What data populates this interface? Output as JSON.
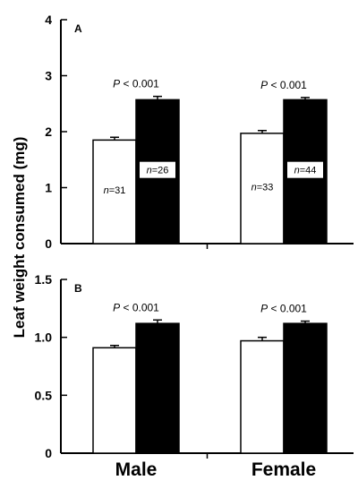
{
  "ylabel": "Leaf weight consumed (mg)",
  "categories": [
    "Male",
    "Female"
  ],
  "chart_data": [
    {
      "type": "bar",
      "panel": "A",
      "categories": [
        "Male",
        "Female"
      ],
      "series": [
        {
          "fill": "#ffffff",
          "values": [
            1.85,
            1.97
          ],
          "errors": [
            0.05,
            0.05
          ],
          "n": [
            "n=31",
            "n=33"
          ]
        },
        {
          "fill": "#000000",
          "values": [
            2.57,
            2.57
          ],
          "errors": [
            0.06,
            0.04
          ],
          "n": [
            "n=26",
            "n=44"
          ]
        }
      ],
      "annotations": [
        "P < 0.001",
        "P < 0.001"
      ],
      "ylim": [
        0,
        4
      ],
      "yticks": [
        "0",
        "1",
        "2",
        "3",
        "4"
      ],
      "ytick_values": [
        0,
        1,
        2,
        3,
        4
      ]
    },
    {
      "type": "bar",
      "panel": "B",
      "categories": [
        "Male",
        "Female"
      ],
      "series": [
        {
          "fill": "#ffffff",
          "values": [
            0.91,
            0.97
          ],
          "errors": [
            0.02,
            0.03
          ]
        },
        {
          "fill": "#000000",
          "values": [
            1.12,
            1.12
          ],
          "errors": [
            0.03,
            0.02
          ]
        }
      ],
      "annotations": [
        "P < 0.001",
        "P < 0.001"
      ],
      "ylim": [
        0,
        1.5
      ],
      "yticks": [
        "0",
        "0.5",
        "1.0",
        "1.5"
      ],
      "ytick_values": [
        0,
        0.5,
        1.0,
        1.5
      ]
    }
  ]
}
